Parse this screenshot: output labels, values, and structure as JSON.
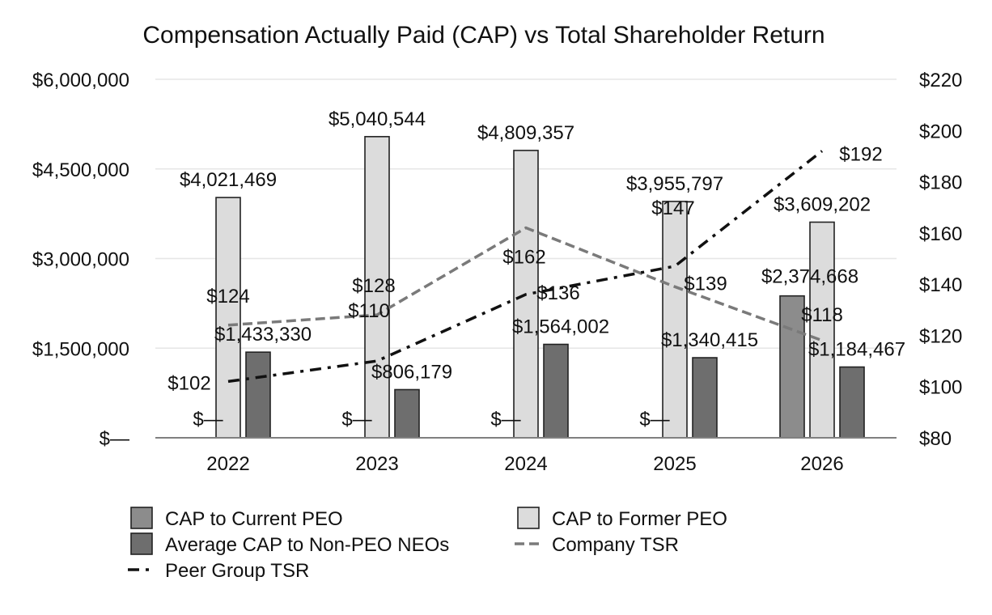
{
  "chart_data": {
    "type": "bar",
    "title": "Compensation Actually Paid (CAP) vs Total Shareholder Return",
    "categories": [
      "2022",
      "2023",
      "2024",
      "2025",
      "2026"
    ],
    "y_left": {
      "range": [
        0,
        6000000
      ],
      "ticks": [
        0,
        1500000,
        3000000,
        4500000,
        6000000
      ],
      "tick_labels": [
        "$—",
        "$1,500,000",
        "$3,000,000",
        "$4,500,000",
        "$6,000,000"
      ]
    },
    "y_right": {
      "range": [
        80,
        220
      ],
      "ticks": [
        80,
        100,
        120,
        140,
        160,
        180,
        200,
        220
      ],
      "tick_labels": [
        "$80",
        "$100",
        "$120",
        "$140",
        "$160",
        "$180",
        "$200",
        "$220"
      ]
    },
    "series": [
      {
        "name": "CAP to Current PEO",
        "kind": "bar",
        "color": "#8c8c8c",
        "values": [
          0,
          0,
          0,
          0,
          2374668
        ],
        "labels": [
          "$—",
          "$—",
          "$—",
          "$—",
          "$2,374,668"
        ]
      },
      {
        "name": "CAP to Former PEO",
        "kind": "bar",
        "color": "#dcdcdc",
        "values": [
          4021469,
          5040544,
          4809357,
          3955797,
          3609202
        ],
        "labels": [
          "$4,021,469",
          "$5,040,544",
          "$4,809,357",
          "$3,955,797",
          "$3,609,202"
        ]
      },
      {
        "name": "Average CAP to Non-PEO NEOs",
        "kind": "bar",
        "color": "#6e6e6e",
        "values": [
          1433330,
          806179,
          1564002,
          1340415,
          1184467
        ],
        "labels": [
          "$1,433,330",
          "$806,179",
          "$1,564,002",
          "$1,340,415",
          "$1,184,467"
        ]
      },
      {
        "name": "Company TSR",
        "kind": "line",
        "axis": "right",
        "color": "#7a7a7a",
        "dash": "dashed",
        "values": [
          124,
          128,
          162,
          139,
          118
        ],
        "labels": [
          "$124",
          "$128",
          "$162",
          "$139",
          "$118"
        ]
      },
      {
        "name": "Peer Group TSR",
        "kind": "line",
        "axis": "right",
        "color": "#111111",
        "dash": "dash-dot",
        "values": [
          102,
          110,
          136,
          147,
          192
        ],
        "labels": [
          "$102",
          "$110",
          "$136",
          "$147",
          "$192"
        ]
      }
    ],
    "grid": true,
    "legend_position": "bottom"
  }
}
